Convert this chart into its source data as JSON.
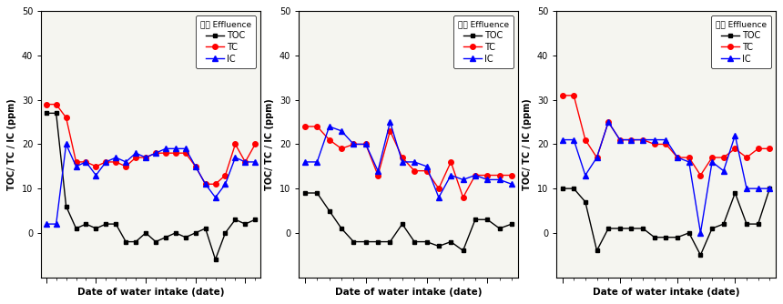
{
  "panels": [
    {
      "title_korean": "츈진",
      "title_suffix": " Effluence",
      "TOC": [
        27,
        27,
        6,
        1,
        2,
        1,
        2,
        2,
        -2,
        -2,
        0,
        -2,
        -1,
        0,
        -1,
        0,
        1,
        -6,
        0,
        3,
        2,
        3
      ],
      "TC": [
        29,
        29,
        26,
        16,
        16,
        15,
        16,
        16,
        15,
        17,
        17,
        18,
        18,
        18,
        18,
        15,
        11,
        11,
        13,
        20,
        16,
        20
      ],
      "IC": [
        2,
        2,
        20,
        15,
        16,
        13,
        16,
        17,
        16,
        18,
        17,
        18,
        19,
        19,
        19,
        15,
        11,
        8,
        11,
        17,
        16,
        16
      ]
    },
    {
      "title_korean": "대공",
      "title_suffix": " Effluence",
      "TOC": [
        9,
        9,
        5,
        1,
        -2,
        -2,
        -2,
        -2,
        2,
        -2,
        -2,
        -3,
        -2,
        -4,
        3,
        3,
        1,
        2
      ],
      "TC": [
        24,
        24,
        21,
        19,
        20,
        20,
        13,
        23,
        17,
        14,
        14,
        10,
        16,
        8,
        13,
        13,
        13,
        13
      ],
      "IC": [
        16,
        16,
        24,
        23,
        20,
        20,
        14,
        25,
        16,
        16,
        15,
        8,
        13,
        12,
        13,
        12,
        12,
        11
      ]
    },
    {
      "title_korean": "진성",
      "title_suffix": " Effluence",
      "TOC": [
        10,
        10,
        7,
        -4,
        1,
        1,
        1,
        1,
        -1,
        -1,
        -1,
        0,
        -5,
        1,
        2,
        9,
        2,
        2,
        10
      ],
      "TC": [
        31,
        31,
        21,
        17,
        25,
        21,
        21,
        21,
        20,
        20,
        17,
        17,
        13,
        17,
        17,
        19,
        17,
        19,
        19
      ],
      "IC": [
        21,
        21,
        13,
        17,
        25,
        21,
        21,
        21,
        21,
        21,
        17,
        16,
        0,
        16,
        14,
        22,
        10,
        10,
        10
      ]
    }
  ],
  "ylabel": "TOC/ TC / IC (ppm)",
  "xlabel": "Date of water intake (date)",
  "ylim": [
    -10,
    50
  ],
  "yticks": [
    0,
    10,
    20,
    30,
    40,
    50
  ],
  "toc_color": "#000000",
  "tc_color": "#ff0000",
  "ic_color": "#0000ff",
  "plot_bg": "#f5f5f0",
  "fig_bg": "#ffffff"
}
